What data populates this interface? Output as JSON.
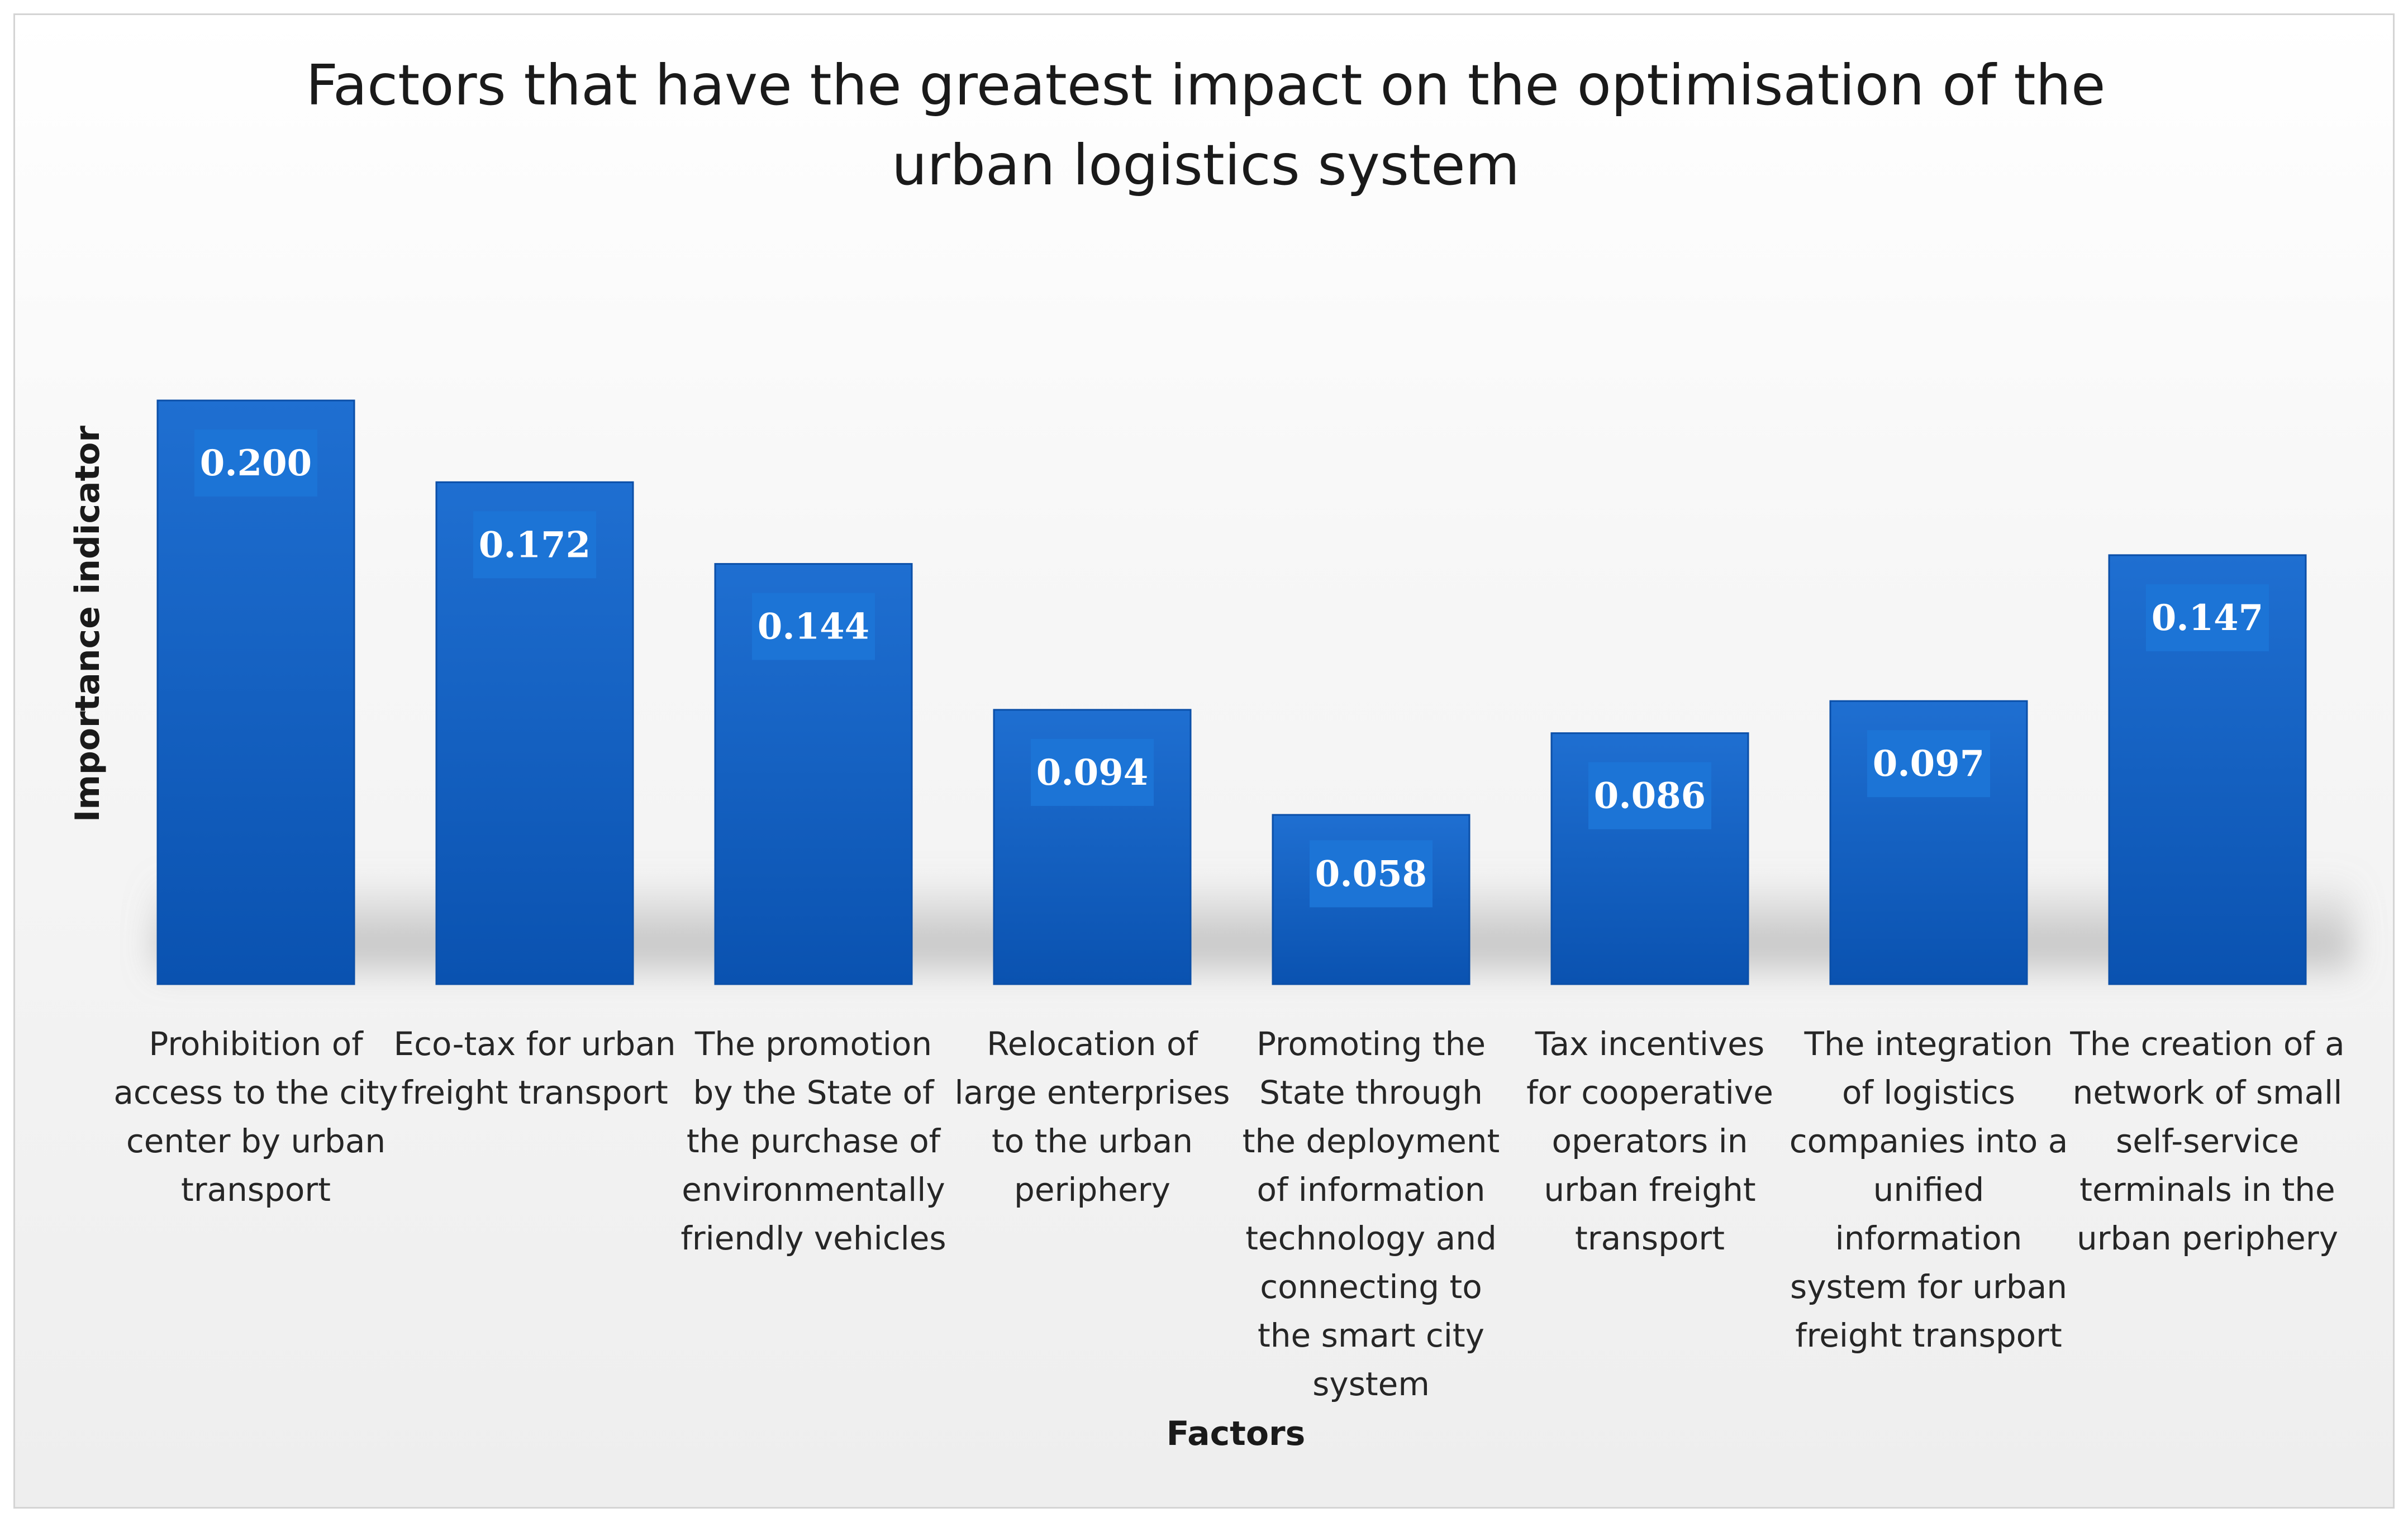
{
  "chart_data": {
    "type": "bar",
    "title": "Factors that have the greatest impact on the optimisation of the urban logistics system",
    "title_lines": [
      "Factors that have the greatest impact on the optimisation of the",
      "urban logistics system"
    ],
    "xlabel": "Factors",
    "ylabel": "Importance indicator",
    "ylim": [
      0,
      0.2
    ],
    "grid": false,
    "legend": "none",
    "categories": [
      "Prohibition of access to the city center by urban transport",
      "Eco-tax for urban freight transport",
      "The promotion by the State of the purchase of environmentally friendly vehicles",
      "Relocation of large enterprises to the urban periphery",
      "Promoting the State through the deployment of information technology and connecting to the smart city system",
      "Tax incentives for cooperative operators in urban freight transport",
      "The integration of logistics companies into a unified information system for urban freight transport",
      "The creation of a network of small self-service terminals in the urban periphery"
    ],
    "category_lines": [
      [
        "Prohibition of",
        "access to the city",
        "center by urban",
        "transport"
      ],
      [
        "Eco-tax for urban",
        "freight transport"
      ],
      [
        "The promotion",
        "by the State of",
        "the purchase of",
        "environmentally",
        "friendly vehicles"
      ],
      [
        "Relocation of",
        "large enterprises",
        "to the urban",
        "periphery"
      ],
      [
        "Promoting the",
        "State through",
        "the deployment",
        "of information",
        "technology and",
        "connecting to",
        "the smart city",
        "system"
      ],
      [
        "Tax incentives",
        "for cooperative",
        "operators in",
        "urban freight",
        "transport"
      ],
      [
        "The integration",
        "of logistics",
        "companies into a",
        "unified",
        "information",
        "system for urban",
        "freight transport"
      ],
      [
        "The creation of a",
        "network of small",
        "self-service",
        "terminals in the",
        "urban periphery"
      ]
    ],
    "values": [
      0.2,
      0.172,
      0.144,
      0.094,
      0.058,
      0.086,
      0.097,
      0.147
    ],
    "value_labels": [
      "0.200",
      "0.172",
      "0.144",
      "0.094",
      "0.058",
      "0.086",
      "0.097",
      "0.147"
    ],
    "colors": {
      "bar_top": "#1f6fd1",
      "bar_bottom": "#0a52b0",
      "bar_edge": "#0b4fa8",
      "label_box": "#1c74d6",
      "shadow": "#9a9a9a"
    }
  }
}
